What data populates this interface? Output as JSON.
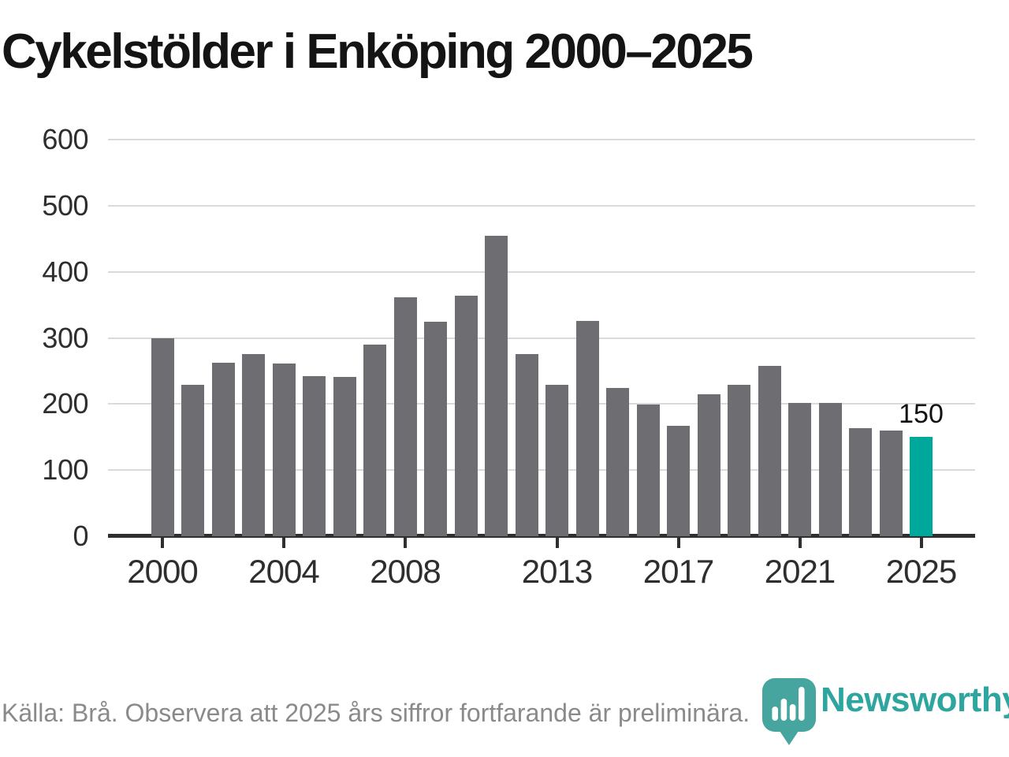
{
  "title": "Cykelstölder i Enköping 2000–2025",
  "footer": {
    "source_note": "Källa: Brå. Observera att 2025 års siffror fortfarande är preliminära."
  },
  "logo": {
    "text": "Newsworthy",
    "pin_color": "#46a59f",
    "text_color": "#2ea69f"
  },
  "colors": {
    "bar": "#6e6e72",
    "highlight": "#00a79b",
    "gridline": "#dadada",
    "axis": "#2f2f2f",
    "tick_label": "#2e2e2e",
    "footer_text": "#8a8a8a",
    "title_text": "#141414"
  },
  "chart_data": {
    "type": "bar",
    "title": "Cykelstölder i Enköping 2000–2025",
    "xlabel": "",
    "ylabel": "",
    "x": [
      2000,
      2001,
      2002,
      2003,
      2004,
      2005,
      2006,
      2007,
      2008,
      2009,
      2010,
      2011,
      2012,
      2013,
      2014,
      2015,
      2016,
      2017,
      2018,
      2019,
      2020,
      2021,
      2022,
      2023,
      2024,
      2025
    ],
    "values": [
      300,
      229,
      263,
      276,
      261,
      242,
      241,
      290,
      361,
      325,
      364,
      455,
      275,
      229,
      326,
      224,
      199,
      167,
      215,
      229,
      258,
      202,
      202,
      163,
      160,
      150
    ],
    "highlight_index": 25,
    "highlight_label": "150",
    "ylim": [
      0,
      600
    ],
    "yticks": [
      0,
      100,
      200,
      300,
      400,
      500,
      600
    ],
    "xtick_labels": [
      "2000",
      "2004",
      "2008",
      "2013",
      "2017",
      "2021",
      "2025"
    ],
    "grid": "horizontal",
    "legend": "none"
  }
}
